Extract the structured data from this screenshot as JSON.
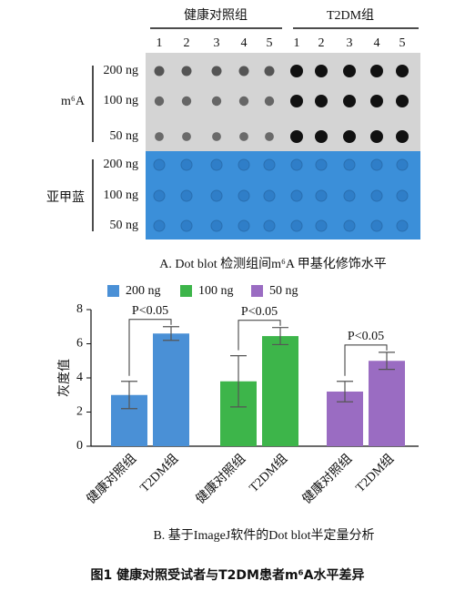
{
  "panel_a": {
    "groups": [
      "健康对照组",
      "T2DM组"
    ],
    "lanes": [
      "1",
      "2",
      "3",
      "4",
      "5",
      "1",
      "2",
      "3",
      "4",
      "5"
    ],
    "blots": [
      {
        "label": "m⁶A",
        "rows": [
          "200 ng",
          "100 ng",
          "50 ng"
        ]
      },
      {
        "label": "亚甲蓝",
        "rows": [
          "200 ng",
          "100 ng",
          "50 ng"
        ]
      }
    ],
    "caption": "A. Dot blot 检测组间m⁶A 甲基化修饰水平"
  },
  "chart_data": {
    "type": "bar",
    "ylabel": "灰度值",
    "categories": [
      "健康对照组",
      "T2DM组"
    ],
    "series": [
      {
        "name": "200 ng",
        "color": "#4a90d6",
        "values": [
          3.0,
          6.6
        ],
        "errors": [
          0.8,
          0.4
        ]
      },
      {
        "name": "100 ng",
        "color": "#3db54a",
        "values": [
          3.8,
          6.45
        ],
        "errors": [
          1.5,
          0.5
        ]
      },
      {
        "name": "50 ng",
        "color": "#9a6cc2",
        "values": [
          3.2,
          5.0
        ],
        "errors": [
          0.6,
          0.5
        ]
      }
    ],
    "annotations": [
      "P<0.05",
      "P<0.05",
      "P<0.05"
    ],
    "ylim": [
      0,
      8
    ],
    "yticks": [
      0,
      2,
      4,
      6,
      8
    ],
    "caption": "B. 基于ImageJ软件的Dot blot半定量分析"
  },
  "figure_caption": "图1  健康对照受试者与T2DM患者m⁶A水平差异"
}
